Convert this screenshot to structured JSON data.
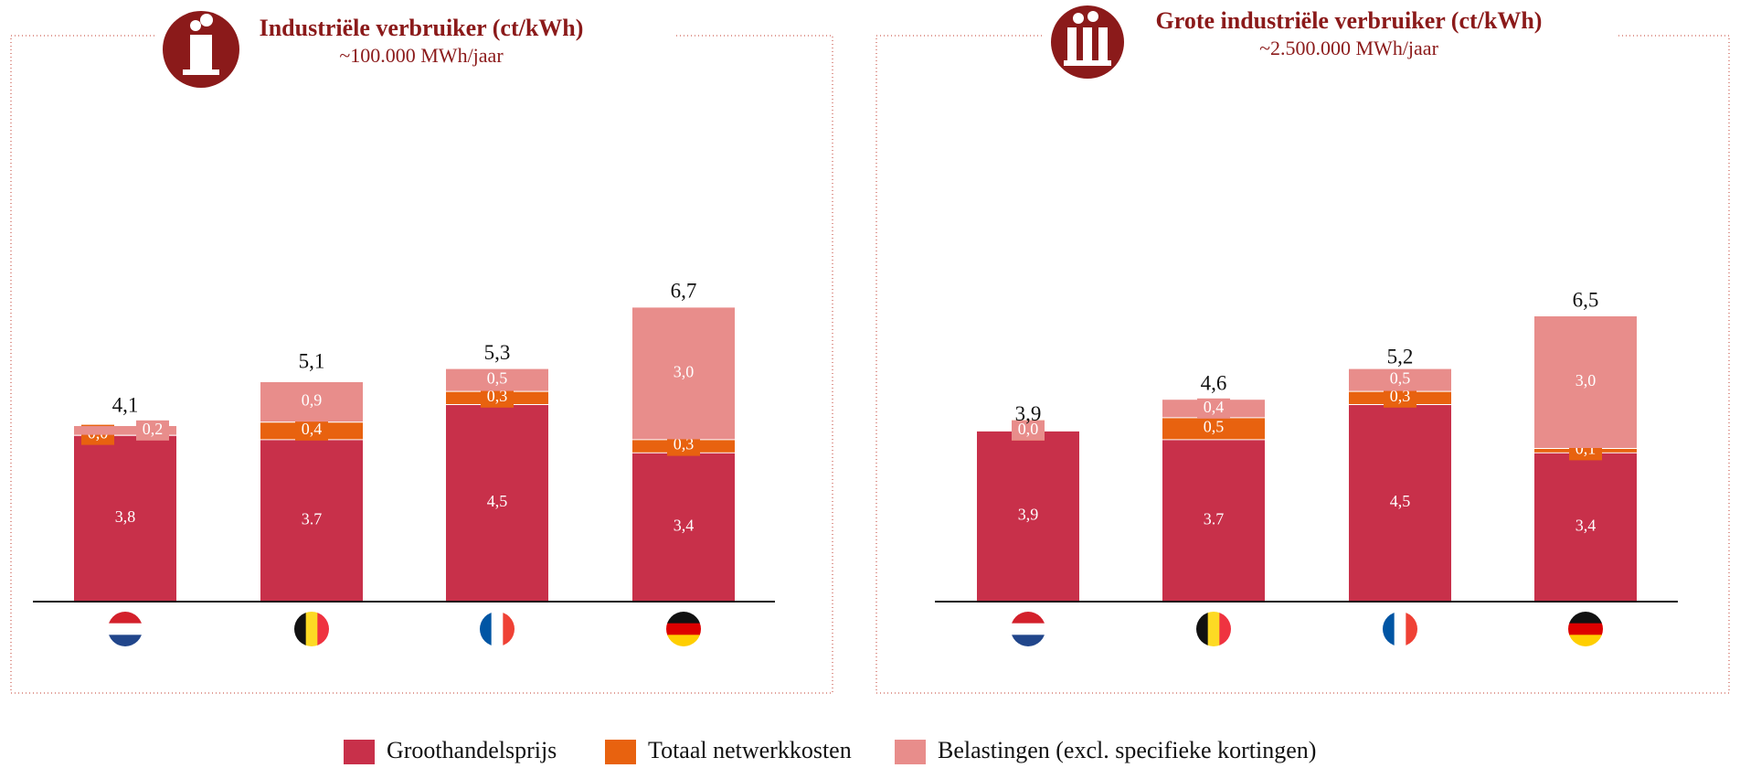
{
  "chart_data": [
    {
      "type": "stacked_bar",
      "title": "Industriële verbruiker (ct/kWh)",
      "subtitle": "~100.000 MWh/jaar",
      "categories": [
        null,
        null,
        null,
        null
      ],
      "series": [
        {
          "name": "Groothandelsprijs",
          "color": "#c8304a",
          "values": [
            3.8,
            3.7,
            4.5,
            3.4
          ],
          "value_labels": [
            "3,8",
            "3.7",
            "4,5",
            "3,4"
          ]
        },
        {
          "name": "Totaal netwerkkosten",
          "color": "#e8620f",
          "values": [
            0.0,
            0.4,
            0.3,
            0.3
          ],
          "value_labels": [
            "0,0",
            "0,4",
            "0,3",
            "0,3"
          ]
        },
        {
          "name": "Belastingen (excl. specifieke kortingen)",
          "color": "#e88d8b",
          "values": [
            0.2,
            0.9,
            0.5,
            3.0
          ],
          "value_labels": [
            "0,2",
            "0,9",
            "0,5",
            "3,0"
          ]
        }
      ],
      "totals": [
        4.1,
        5.1,
        5.3,
        6.7
      ],
      "total_labels": [
        "4,1",
        "5,1",
        "5,3",
        "6,7"
      ],
      "ylim": [
        0,
        12
      ]
    },
    {
      "type": "stacked_bar",
      "title": "Grote industriële verbruiker (ct/kWh)",
      "subtitle": "~2.500.000 MWh/jaar",
      "categories": [
        null,
        null,
        null,
        null
      ],
      "series": [
        {
          "values": [
            3.9,
            3.7,
            4.5,
            3.4
          ],
          "value_labels": [
            "3,9",
            "3.7",
            "4,5",
            "3,4"
          ]
        },
        {
          "values": [
            0.0,
            0.5,
            0.3,
            0.1
          ],
          "value_labels": [
            "0,0",
            "0,5",
            "0,3",
            "0,1"
          ]
        },
        {
          "values": [
            0.0,
            0.4,
            0.5,
            3.0
          ],
          "value_labels": [
            "0,0",
            "0,4",
            "0,5",
            "3,0"
          ]
        }
      ],
      "totals": [
        3.9,
        4.6,
        5.2,
        6.5
      ],
      "total_labels": [
        "3,9",
        "4,6",
        "5,2",
        "6,5"
      ],
      "ylim": [
        0,
        12
      ]
    }
  ]
}
